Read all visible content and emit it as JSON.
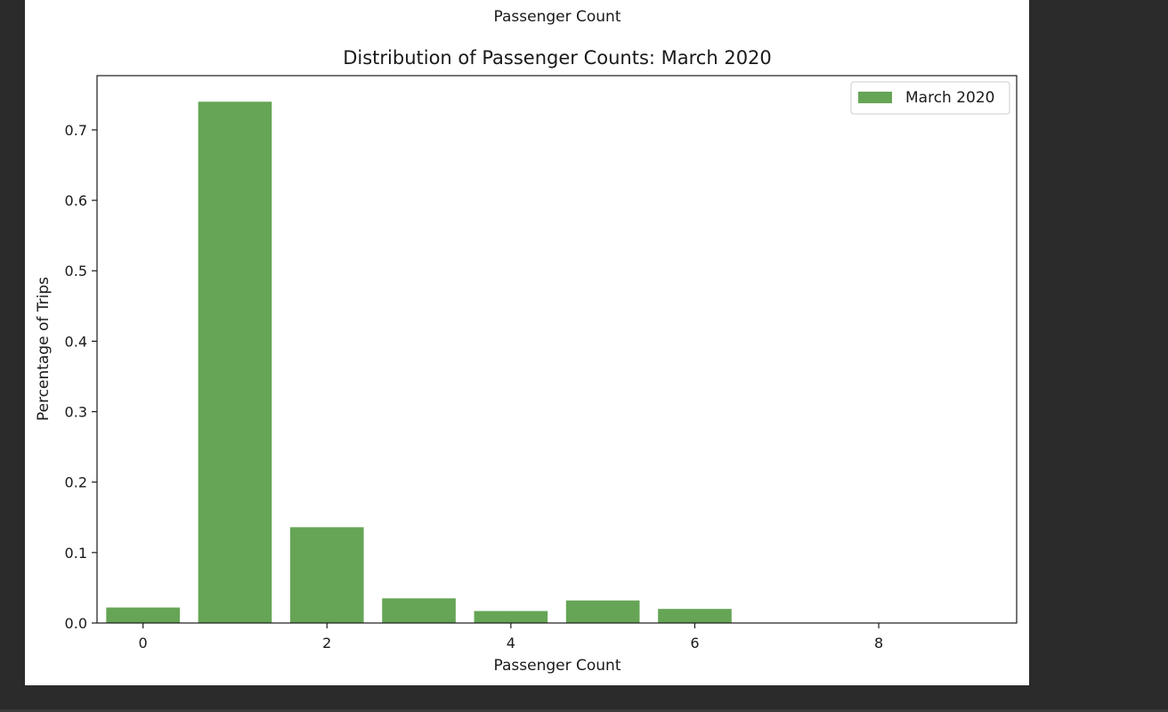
{
  "page": {
    "caption": "Passenger Count"
  },
  "colors": {
    "bar": "#65a555",
    "axis": "#1a1a1a",
    "background": "#ffffff",
    "outer_background": "#2b2b2b"
  },
  "chart_data": {
    "type": "bar",
    "title": "Distribution of Passenger Counts: March 2020",
    "xlabel": "Passenger Count",
    "ylabel": "Percentage of Trips",
    "x": [
      0,
      1,
      2,
      3,
      4,
      5,
      6,
      7,
      8,
      9
    ],
    "series": [
      {
        "name": "March 2020",
        "values": [
          0.022,
          0.74,
          0.136,
          0.035,
          0.017,
          0.032,
          0.02,
          0.0,
          0.0,
          0.0
        ]
      }
    ],
    "xlim": [
      -0.5,
      9.5
    ],
    "ylim": [
      0,
      0.777
    ],
    "xticks": [
      0,
      2,
      4,
      6,
      8
    ],
    "yticks": [
      0.0,
      0.1,
      0.2,
      0.3,
      0.4,
      0.5,
      0.6,
      0.7
    ],
    "ytick_labels": [
      "0.0",
      "0.1",
      "0.2",
      "0.3",
      "0.4",
      "0.5",
      "0.6",
      "0.7"
    ],
    "grid": false,
    "legend_position": "top-right"
  }
}
